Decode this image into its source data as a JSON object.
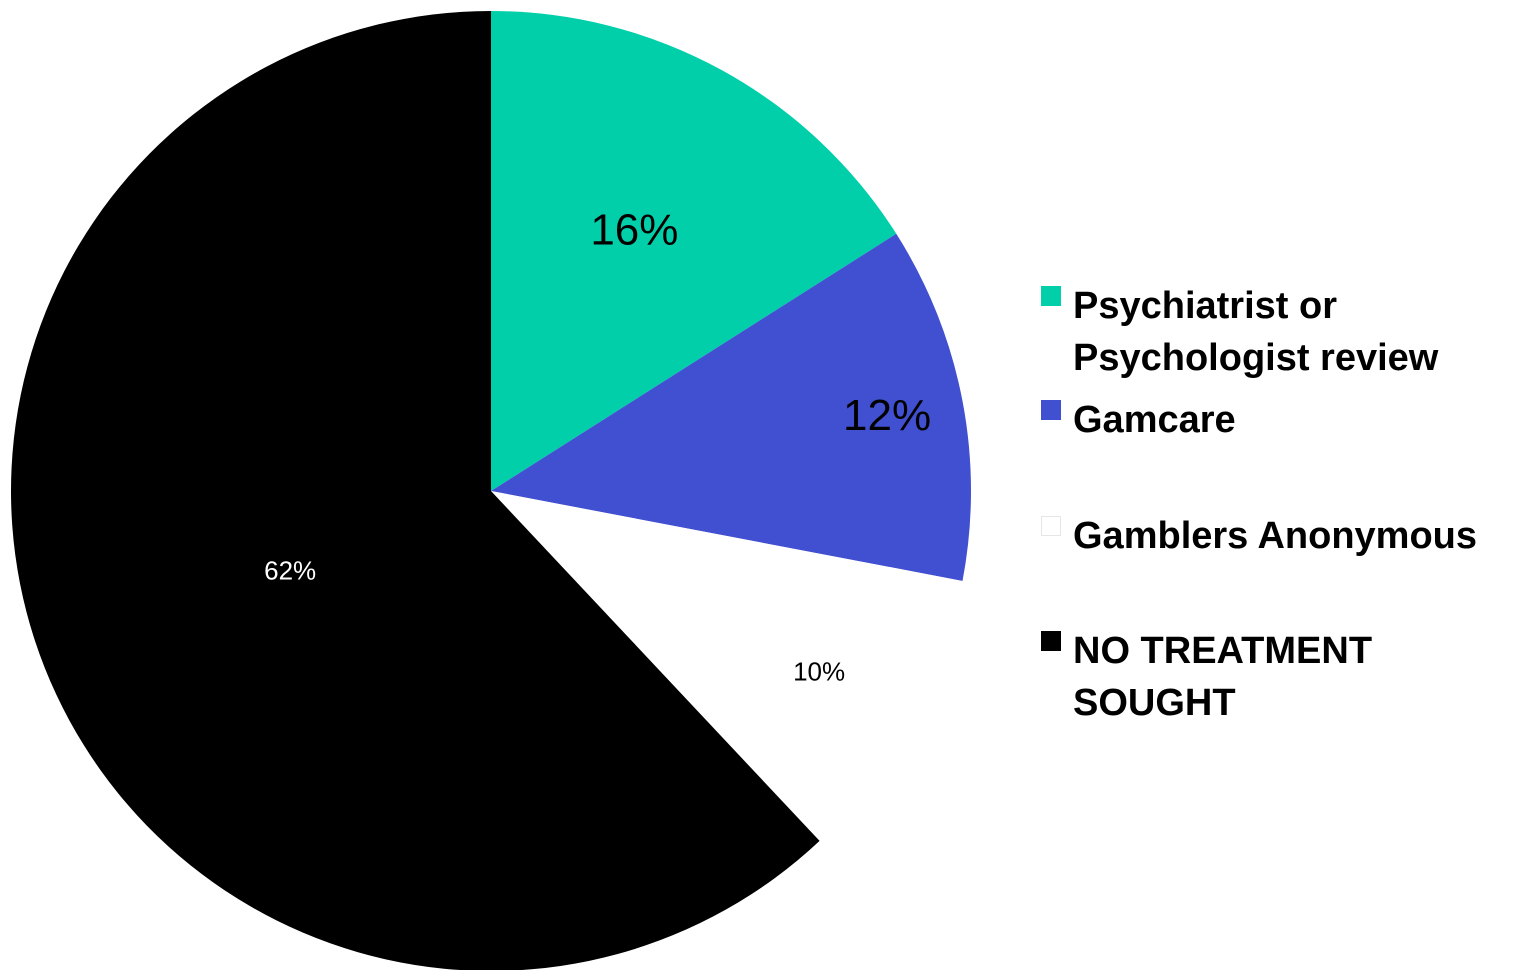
{
  "chart_data": {
    "type": "pie",
    "title": "",
    "legend_position": "right",
    "slices": [
      {
        "label": "Psychiatrist or Psychologist review",
        "value": 16,
        "display": "16%",
        "color": "#00CFAA",
        "label_color": "#000000"
      },
      {
        "label": "Gamcare",
        "value": 12,
        "display": "12%",
        "color": "#4150D0",
        "label_color": "#000000"
      },
      {
        "label": "Gamblers Anonymous",
        "value": 10,
        "display": "10%",
        "color": "#FFFFFF",
        "label_color": "#000000"
      },
      {
        "label": "NO TREATMENT SOUGHT",
        "value": 62,
        "display": "62%",
        "color": "#000000",
        "label_color": "#FFFFFF"
      }
    ]
  },
  "legend": {
    "items": [
      {
        "line1": "Psychiatrist or",
        "line2": "Psychologist review"
      },
      {
        "line1": "Gamcare",
        "line2": ""
      },
      {
        "line1": "Gamblers Anonymous",
        "line2": ""
      },
      {
        "line1": "NO TREATMENT",
        "line2": "SOUGHT"
      }
    ]
  }
}
